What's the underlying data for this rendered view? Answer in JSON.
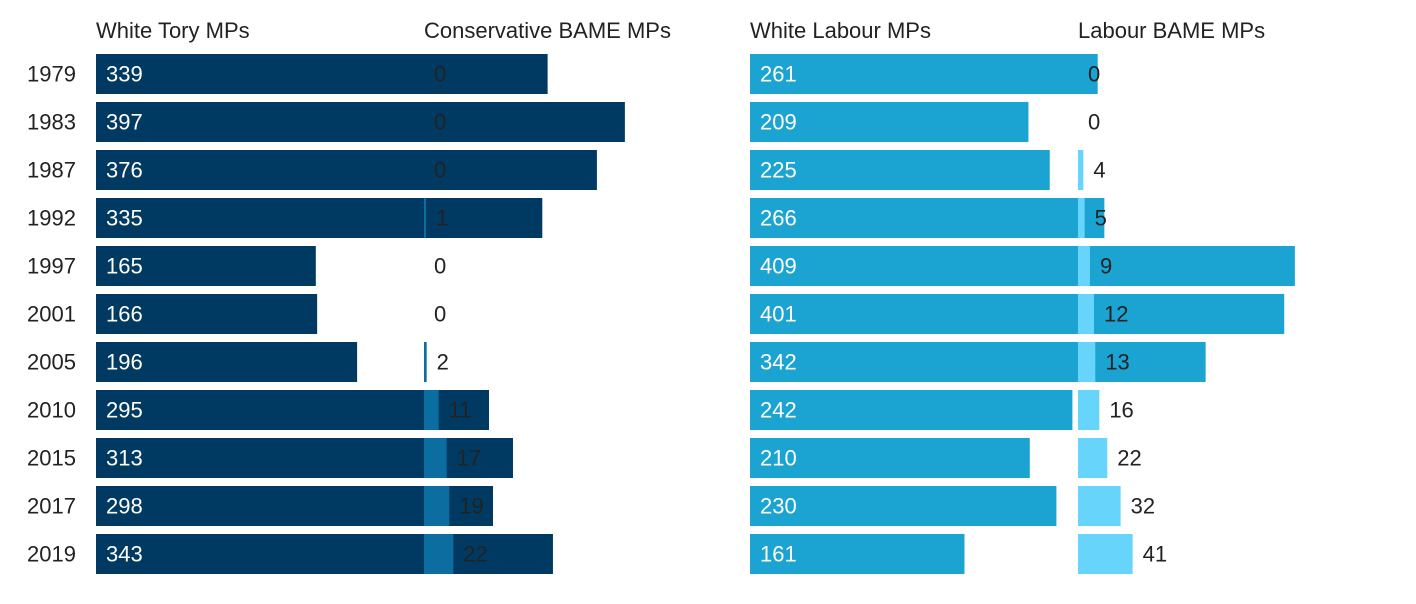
{
  "chart_data": {
    "type": "bar",
    "orientation": "horizontal",
    "categories": [
      "1979",
      "1983",
      "1987",
      "1992",
      "1997",
      "2001",
      "2005",
      "2010",
      "2015",
      "2017",
      "2019"
    ],
    "series": [
      {
        "name": "White Tory MPs",
        "color": "#003a63",
        "values": [
          339,
          397,
          376,
          335,
          165,
          166,
          196,
          295,
          313,
          298,
          343
        ]
      },
      {
        "name": "Conservative BAME MPs",
        "color": "#0c6ea0",
        "values": [
          0,
          0,
          0,
          1,
          0,
          0,
          2,
          11,
          17,
          19,
          22
        ]
      },
      {
        "name": "White Labour MPs",
        "color": "#1ba3d1",
        "values": [
          261,
          209,
          225,
          266,
          409,
          401,
          342,
          242,
          210,
          230,
          161
        ]
      },
      {
        "name": "Labour BAME MPs",
        "color": "#66d4fb",
        "values": [
          0,
          0,
          4,
          5,
          9,
          12,
          13,
          16,
          22,
          32,
          41
        ]
      }
    ],
    "title": "",
    "xlabel": "",
    "ylabel": "",
    "grid": false,
    "legend": "none"
  }
}
